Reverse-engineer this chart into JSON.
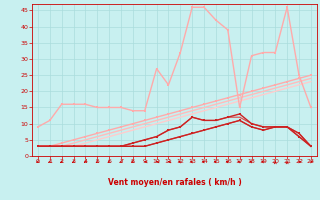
{
  "xlabel": "Vent moyen/en rafales ( km/h )",
  "xlim": [
    -0.5,
    23.5
  ],
  "ylim": [
    0,
    47
  ],
  "xticks": [
    0,
    1,
    2,
    3,
    4,
    5,
    6,
    7,
    8,
    9,
    10,
    11,
    12,
    13,
    14,
    15,
    16,
    17,
    18,
    19,
    20,
    21,
    22,
    23
  ],
  "yticks": [
    0,
    5,
    10,
    15,
    20,
    25,
    30,
    35,
    40,
    45
  ],
  "bg_color": "#c8f0f0",
  "grid_color": "#aadddd",
  "line_light_peak": {
    "x": [
      0,
      1,
      2,
      3,
      4,
      5,
      6,
      7,
      8,
      9,
      10,
      11,
      12,
      13,
      14,
      15,
      16,
      17,
      18,
      19,
      20,
      21,
      22,
      23
    ],
    "y": [
      9,
      11,
      16,
      16,
      16,
      15,
      15,
      15,
      14,
      14,
      27,
      22,
      32,
      46,
      46,
      42,
      39,
      15,
      31,
      32,
      32,
      46,
      25,
      15
    ],
    "color": "#ffaaaa",
    "lw": 1.0,
    "marker": "s",
    "ms": 1.8
  },
  "line_light_linear1": {
    "x": [
      0,
      1,
      2,
      3,
      4,
      5,
      6,
      7,
      8,
      9,
      10,
      11,
      12,
      13,
      14,
      15,
      16,
      17,
      18,
      19,
      20,
      21,
      22,
      23
    ],
    "y": [
      3,
      3,
      4,
      5,
      6,
      7,
      8,
      9,
      10,
      11,
      12,
      13,
      14,
      15,
      16,
      17,
      18,
      19,
      20,
      21,
      22,
      23,
      24,
      25
    ],
    "color": "#ffaaaa",
    "lw": 1.0,
    "marker": "s",
    "ms": 1.8
  },
  "line_light_linear2": {
    "x": [
      0,
      1,
      2,
      3,
      4,
      5,
      6,
      7,
      8,
      9,
      10,
      11,
      12,
      13,
      14,
      15,
      16,
      17,
      18,
      19,
      20,
      21,
      22,
      23
    ],
    "y": [
      3,
      3,
      3,
      4,
      5,
      6,
      7,
      8,
      9,
      10,
      11,
      12,
      13,
      14,
      15,
      16,
      17,
      18,
      19,
      20,
      21,
      22,
      23,
      24
    ],
    "color": "#ffbbbb",
    "lw": 1.0,
    "marker": null,
    "ms": 0
  },
  "line_light_linear3": {
    "x": [
      0,
      1,
      2,
      3,
      4,
      5,
      6,
      7,
      8,
      9,
      10,
      11,
      12,
      13,
      14,
      15,
      16,
      17,
      18,
      19,
      20,
      21,
      22,
      23
    ],
    "y": [
      3,
      3,
      3,
      3,
      4,
      5,
      6,
      7,
      8,
      9,
      10,
      11,
      12,
      13,
      14,
      15,
      16,
      17,
      18,
      19,
      20,
      21,
      22,
      23
    ],
    "color": "#ffcccc",
    "lw": 1.0,
    "marker": null,
    "ms": 0
  },
  "line_dark_bumpy1": {
    "x": [
      0,
      1,
      2,
      3,
      4,
      5,
      6,
      7,
      8,
      9,
      10,
      11,
      12,
      13,
      14,
      15,
      16,
      17,
      18,
      19,
      20,
      21,
      22,
      23
    ],
    "y": [
      3,
      3,
      3,
      3,
      3,
      3,
      3,
      3,
      4,
      5,
      6,
      8,
      9,
      12,
      11,
      11,
      12,
      13,
      10,
      9,
      9,
      9,
      7,
      3
    ],
    "color": "#cc2222",
    "lw": 1.0,
    "marker": "s",
    "ms": 1.8
  },
  "line_dark_bumpy2": {
    "x": [
      0,
      1,
      2,
      3,
      4,
      5,
      6,
      7,
      8,
      9,
      10,
      11,
      12,
      13,
      14,
      15,
      16,
      17,
      18,
      19,
      20,
      21,
      22,
      23
    ],
    "y": [
      3,
      3,
      3,
      3,
      3,
      3,
      3,
      3,
      3,
      3,
      4,
      5,
      6,
      7,
      8,
      9,
      10,
      11,
      9,
      8,
      9,
      9,
      6,
      3
    ],
    "color": "#cc2222",
    "lw": 1.0,
    "marker": "s",
    "ms": 1.8
  },
  "line_dark_fill1": {
    "x": [
      0,
      1,
      2,
      3,
      4,
      5,
      6,
      7,
      8,
      9,
      10,
      11,
      12,
      13,
      14,
      15,
      16,
      17,
      18,
      19,
      20,
      21,
      22,
      23
    ],
    "y": [
      3,
      3,
      3,
      3,
      3,
      3,
      3,
      3,
      4,
      5,
      6,
      8,
      9,
      12,
      11,
      11,
      12,
      12,
      10,
      9,
      9,
      9,
      7,
      3
    ],
    "color": "#dd4444",
    "lw": 0.8,
    "marker": null,
    "ms": 0
  },
  "line_dark_fill2": {
    "x": [
      0,
      1,
      2,
      3,
      4,
      5,
      6,
      7,
      8,
      9,
      10,
      11,
      12,
      13,
      14,
      15,
      16,
      17,
      18,
      19,
      20,
      21,
      22,
      23
    ],
    "y": [
      3,
      3,
      3,
      3,
      3,
      3,
      3,
      3,
      3,
      3,
      4,
      5,
      6,
      7,
      8,
      9,
      10,
      11,
      9,
      8,
      9,
      9,
      6,
      3
    ],
    "color": "#dd4444",
    "lw": 0.8,
    "marker": null,
    "ms": 0
  },
  "wind_arrows": {
    "x": [
      0,
      1,
      2,
      3,
      4,
      5,
      6,
      7,
      8,
      9,
      10,
      11,
      12,
      13,
      14,
      15,
      16,
      17,
      18,
      19,
      20,
      21,
      22,
      23
    ],
    "angles": [
      210,
      210,
      210,
      210,
      210,
      210,
      210,
      210,
      210,
      270,
      270,
      270,
      315,
      315,
      315,
      315,
      315,
      315,
      315,
      315,
      0,
      0,
      45,
      45
    ]
  }
}
